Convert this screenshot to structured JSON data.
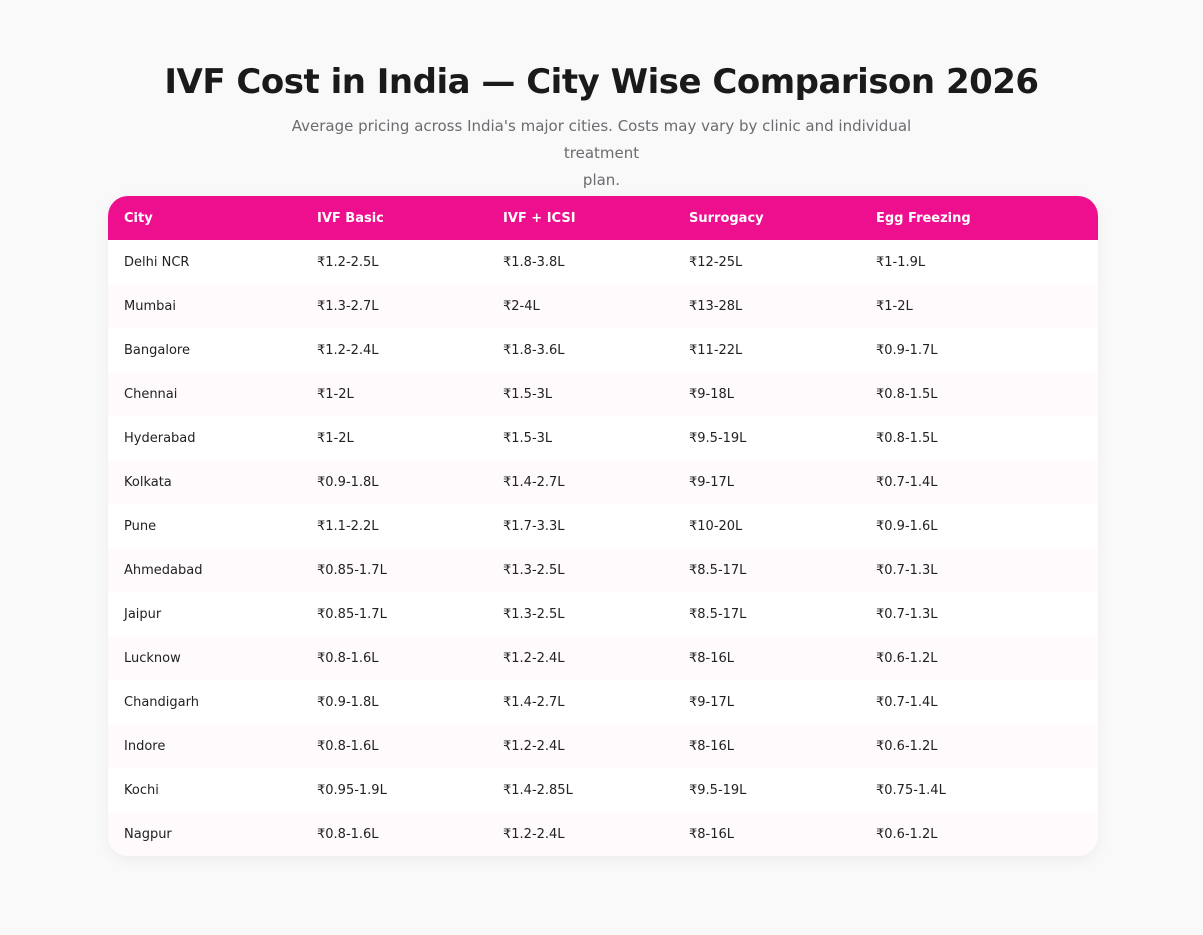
{
  "header": {
    "title": "IVF Cost in India — City Wise Comparison 2026",
    "subtitle_line1": "Average pricing across India's major cities. Costs may vary by clinic and individual treatment",
    "subtitle_line2": "plan."
  },
  "colors": {
    "accent": "#ee0f8e",
    "background": "#f9f9fa"
  },
  "table": {
    "columns": [
      "City",
      "IVF Basic",
      "IVF + ICSI",
      "Surrogacy",
      "Egg Freezing"
    ],
    "rows": [
      [
        "Delhi NCR",
        "₹1.2-2.5L",
        "₹1.8-3.8L",
        "₹12-25L",
        "₹1-1.9L"
      ],
      [
        "Mumbai",
        "₹1.3-2.7L",
        "₹2-4L",
        "₹13-28L",
        "₹1-2L"
      ],
      [
        "Bangalore",
        "₹1.2-2.4L",
        "₹1.8-3.6L",
        "₹11-22L",
        "₹0.9-1.7L"
      ],
      [
        "Chennai",
        "₹1-2L",
        "₹1.5-3L",
        "₹9-18L",
        "₹0.8-1.5L"
      ],
      [
        "Hyderabad",
        "₹1-2L",
        "₹1.5-3L",
        "₹9.5-19L",
        "₹0.8-1.5L"
      ],
      [
        "Kolkata",
        "₹0.9-1.8L",
        "₹1.4-2.7L",
        "₹9-17L",
        "₹0.7-1.4L"
      ],
      [
        "Pune",
        "₹1.1-2.2L",
        "₹1.7-3.3L",
        "₹10-20L",
        "₹0.9-1.6L"
      ],
      [
        "Ahmedabad",
        "₹0.85-1.7L",
        "₹1.3-2.5L",
        "₹8.5-17L",
        "₹0.7-1.3L"
      ],
      [
        "Jaipur",
        "₹0.85-1.7L",
        "₹1.3-2.5L",
        "₹8.5-17L",
        "₹0.7-1.3L"
      ],
      [
        "Lucknow",
        "₹0.8-1.6L",
        "₹1.2-2.4L",
        "₹8-16L",
        "₹0.6-1.2L"
      ],
      [
        "Chandigarh",
        "₹0.9-1.8L",
        "₹1.4-2.7L",
        "₹9-17L",
        "₹0.7-1.4L"
      ],
      [
        "Indore",
        "₹0.8-1.6L",
        "₹1.2-2.4L",
        "₹8-16L",
        "₹0.6-1.2L"
      ],
      [
        "Kochi",
        "₹0.95-1.9L",
        "₹1.4-2.85L",
        "₹9.5-19L",
        "₹0.75-1.4L"
      ],
      [
        "Nagpur",
        "₹0.8-1.6L",
        "₹1.2-2.4L",
        "₹8-16L",
        "₹0.6-1.2L"
      ]
    ]
  }
}
